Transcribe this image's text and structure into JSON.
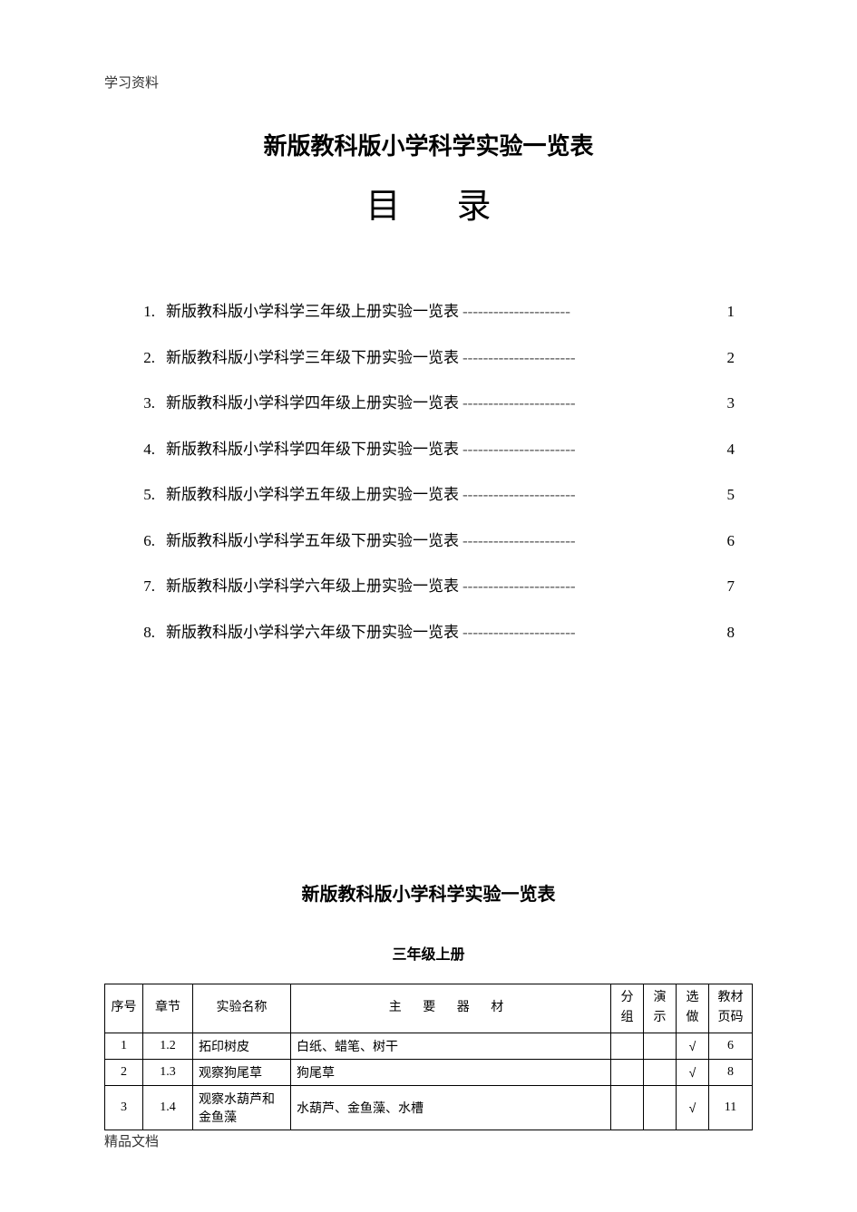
{
  "header_label": "学习资料",
  "main_title": "新版教科版小学科学实验一览表",
  "toc_heading": "目录",
  "toc": [
    {
      "num": "1.",
      "text": "新版教科版小学科学三年级上册实验一览表",
      "page": "1",
      "leader": "---------------------"
    },
    {
      "num": "2.",
      "text": "新版教科版小学科学三年级下册实验一览表",
      "page": "2",
      "leader": " ----------------------"
    },
    {
      "num": "3.",
      "text": "新版教科版小学科学四年级上册实验一览表",
      "page": "3",
      "leader": " ----------------------"
    },
    {
      "num": "4.",
      "text": "新版教科版小学科学四年级下册实验一览表",
      "page": "4",
      "leader": " ----------------------"
    },
    {
      "num": "5.",
      "text": "新版教科版小学科学五年级上册实验一览表",
      "page": "5",
      "leader": " ----------------------"
    },
    {
      "num": "6.",
      "text": "新版教科版小学科学五年级下册实验一览表",
      "page": "6",
      "leader": " ----------------------"
    },
    {
      "num": "7.",
      "text": "新版教科版小学科学六年级上册实验一览表",
      "page": "7",
      "leader": " ----------------------"
    },
    {
      "num": "8.",
      "text": "新版教科版小学科学六年级下册实验一览表",
      "page": "8",
      "leader": " ----------------------"
    }
  ],
  "section_title": "新版教科版小学科学实验一览表",
  "section_subtitle": "三年级上册",
  "table": {
    "headers": {
      "idx": "序号",
      "chapter": "章节",
      "name": "实验名称",
      "materials": "主 要 器 材",
      "group": "分组",
      "demo": "演示",
      "optional": "选做",
      "page": "教材页码"
    },
    "check_mark": "√",
    "rows": [
      {
        "idx": "1",
        "chapter": "1.2",
        "name": "拓印树皮",
        "materials": "白纸、蜡笔、树干",
        "group": "",
        "demo": "",
        "optional": "√",
        "page": "6"
      },
      {
        "idx": "2",
        "chapter": "1.3",
        "name": "观察狗尾草",
        "materials": "狗尾草",
        "group": "",
        "demo": "",
        "optional": "√",
        "page": "8"
      },
      {
        "idx": "3",
        "chapter": "1.4",
        "name": "观察水葫芦和金鱼藻",
        "materials": "水葫芦、金鱼藻、水槽",
        "group": "",
        "demo": "",
        "optional": "√",
        "page": "11"
      }
    ]
  },
  "footer_label": "精品文档",
  "colors": {
    "text": "#000000",
    "bg": "#ffffff",
    "border": "#000000"
  }
}
